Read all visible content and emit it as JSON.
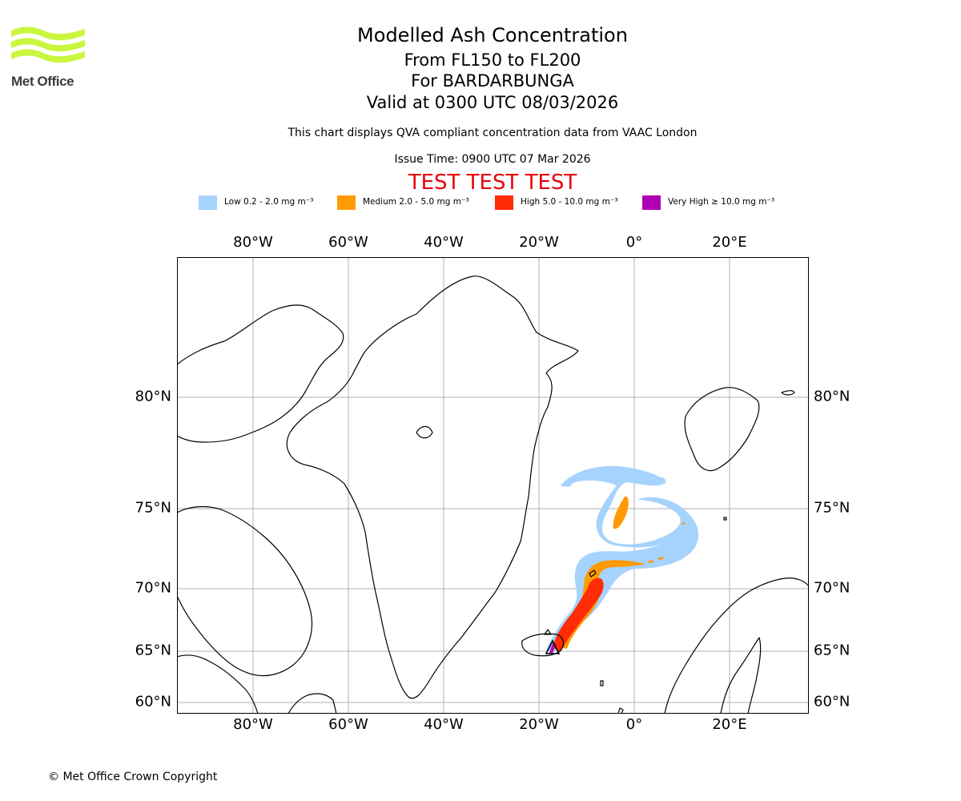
{
  "logo": {
    "name": "Met Office"
  },
  "titles": {
    "main": "Modelled Ash Concentration",
    "levels": "From FL150 to FL200",
    "volcano": "For BARDARBUNGA",
    "valid": "Valid at 0300 UTC 08/03/2026",
    "note": "This chart displays QVA compliant concentration data from VAAC London",
    "issue": "Issue Time: 0900 UTC 07 Mar 2026",
    "test": "TEST TEST TEST"
  },
  "legend": [
    {
      "label": "Low 0.2 - 2.0 mg m⁻³",
      "color": "#a6d3fd"
    },
    {
      "label": "Medium 2.0 - 5.0 mg m⁻³",
      "color": "#ff9a05"
    },
    {
      "label": "High 5.0 - 10.0 mg m⁻³",
      "color": "#ff2c04"
    },
    {
      "label": "Very High  ≥  10.0 mg m⁻³",
      "color": "#b000b4"
    }
  ],
  "lon_ticks": [
    "80°W",
    "60°W",
    "40°W",
    "20°W",
    "0°",
    "20°E"
  ],
  "lat_ticks": [
    "80°N",
    "75°N",
    "70°N",
    "65°N",
    "60°N"
  ],
  "copyright": "© Met Office Crown Copyright"
}
